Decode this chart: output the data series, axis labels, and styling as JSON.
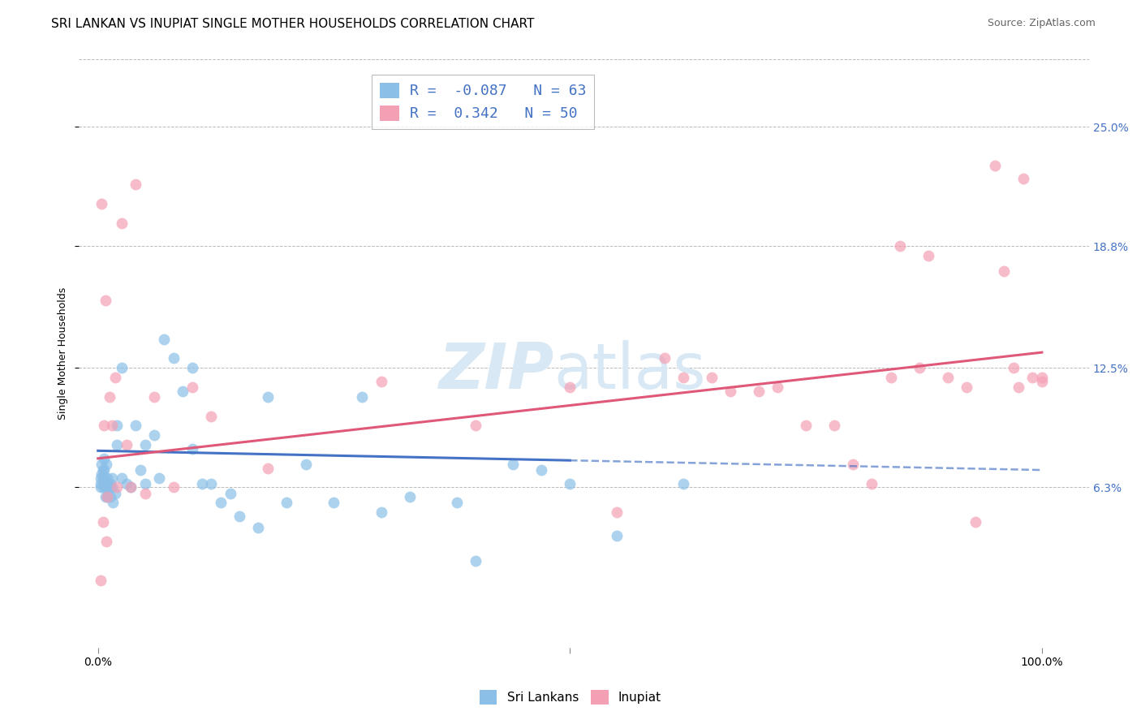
{
  "title": "SRI LANKAN VS INUPIAT SINGLE MOTHER HOUSEHOLDS CORRELATION CHART",
  "source": "Source: ZipAtlas.com",
  "ylabel": "Single Mother Households",
  "xlabel": "",
  "legend_label1": "Sri Lankans",
  "legend_label2": "Inupiat",
  "r1": -0.087,
  "n1": 63,
  "r2": 0.342,
  "n2": 50,
  "color_sri": "#8BBFE8",
  "color_inupiat": "#F4A0B4",
  "color_line_sri": "#4472C4",
  "color_line_inupiat": "#E05878",
  "ytick_labels": [
    "6.3%",
    "12.5%",
    "18.8%",
    "25.0%"
  ],
  "ytick_values": [
    0.063,
    0.125,
    0.188,
    0.25
  ],
  "xlim": [
    -0.02,
    1.05
  ],
  "ylim": [
    -0.02,
    0.285
  ],
  "sri_x": [
    0.003,
    0.003,
    0.003,
    0.004,
    0.004,
    0.005,
    0.005,
    0.005,
    0.006,
    0.006,
    0.007,
    0.007,
    0.008,
    0.008,
    0.009,
    0.009,
    0.01,
    0.01,
    0.01,
    0.012,
    0.013,
    0.013,
    0.015,
    0.015,
    0.016,
    0.018,
    0.02,
    0.02,
    0.025,
    0.025,
    0.03,
    0.035,
    0.04,
    0.045,
    0.05,
    0.05,
    0.06,
    0.065,
    0.07,
    0.08,
    0.09,
    0.1,
    0.1,
    0.11,
    0.12,
    0.13,
    0.14,
    0.15,
    0.17,
    0.18,
    0.2,
    0.22,
    0.25,
    0.28,
    0.3,
    0.33,
    0.38,
    0.4,
    0.44,
    0.47,
    0.5,
    0.55,
    0.62
  ],
  "sri_y": [
    0.068,
    0.065,
    0.063,
    0.075,
    0.07,
    0.072,
    0.068,
    0.063,
    0.078,
    0.072,
    0.068,
    0.065,
    0.063,
    0.058,
    0.075,
    0.063,
    0.068,
    0.065,
    0.058,
    0.063,
    0.065,
    0.058,
    0.068,
    0.063,
    0.055,
    0.06,
    0.095,
    0.085,
    0.125,
    0.068,
    0.065,
    0.063,
    0.095,
    0.072,
    0.085,
    0.065,
    0.09,
    0.068,
    0.14,
    0.13,
    0.113,
    0.125,
    0.083,
    0.065,
    0.065,
    0.055,
    0.06,
    0.048,
    0.042,
    0.11,
    0.055,
    0.075,
    0.055,
    0.11,
    0.05,
    0.058,
    0.055,
    0.025,
    0.075,
    0.072,
    0.065,
    0.038,
    0.065
  ],
  "inupiat_x": [
    0.003,
    0.004,
    0.005,
    0.006,
    0.008,
    0.009,
    0.01,
    0.012,
    0.015,
    0.018,
    0.02,
    0.025,
    0.03,
    0.035,
    0.04,
    0.05,
    0.06,
    0.08,
    0.1,
    0.12,
    0.18,
    0.3,
    0.4,
    0.5,
    0.55,
    0.6,
    0.62,
    0.65,
    0.67,
    0.7,
    0.72,
    0.75,
    0.78,
    0.8,
    0.82,
    0.84,
    0.85,
    0.87,
    0.88,
    0.9,
    0.92,
    0.93,
    0.95,
    0.96,
    0.97,
    0.975,
    0.98,
    0.99,
    1.0,
    1.0
  ],
  "inupiat_y": [
    0.015,
    0.21,
    0.045,
    0.095,
    0.16,
    0.035,
    0.058,
    0.11,
    0.095,
    0.12,
    0.063,
    0.2,
    0.085,
    0.063,
    0.22,
    0.06,
    0.11,
    0.063,
    0.115,
    0.1,
    0.073,
    0.118,
    0.095,
    0.115,
    0.05,
    0.13,
    0.12,
    0.12,
    0.113,
    0.113,
    0.115,
    0.095,
    0.095,
    0.075,
    0.065,
    0.12,
    0.188,
    0.125,
    0.183,
    0.12,
    0.115,
    0.045,
    0.23,
    0.175,
    0.125,
    0.115,
    0.223,
    0.12,
    0.118,
    0.12
  ],
  "line_sri_x0": 0.0,
  "line_sri_x_solid_end": 0.5,
  "line_sri_x1": 1.0,
  "line_sri_y0": 0.082,
  "line_sri_y_solid_end": 0.077,
  "line_sri_y1": 0.072,
  "line_inupiat_x0": 0.0,
  "line_inupiat_x1": 1.0,
  "line_inupiat_y0": 0.078,
  "line_inupiat_y1": 0.133,
  "background_color": "#FFFFFF",
  "grid_color": "#BBBBBB",
  "title_fontsize": 11,
  "axis_label_fontsize": 9,
  "tick_fontsize": 10,
  "watermark_color": "#D8E8F5",
  "watermark_fontsize": 56
}
